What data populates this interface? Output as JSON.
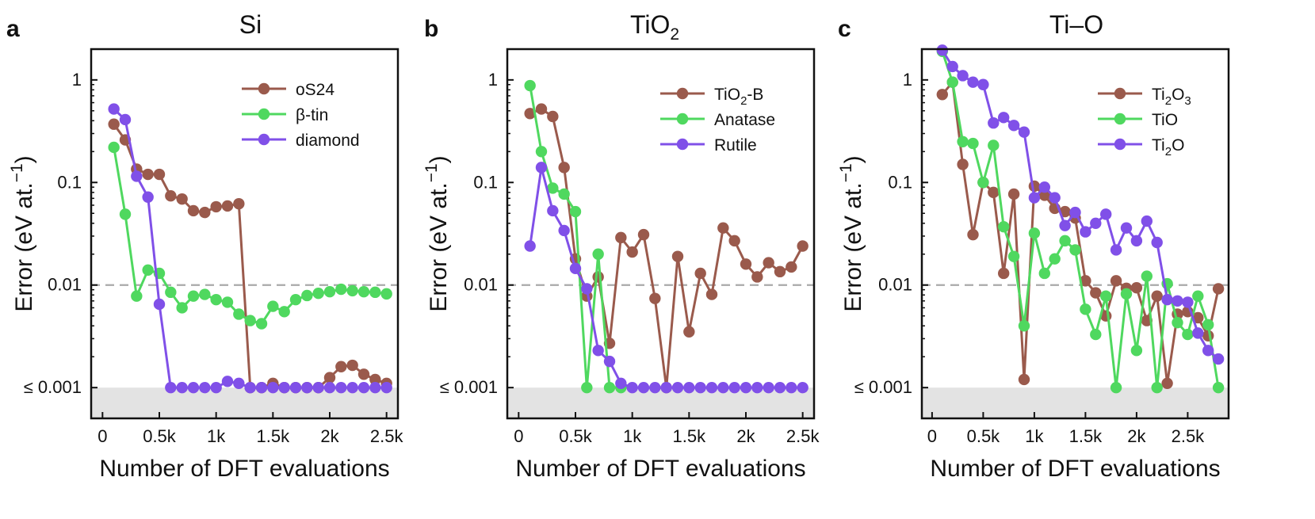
{
  "figure": {
    "xlabel": "Number of DFT evaluations",
    "ylabel": "Error (eV at.",
    "ylabel_sup": "−1",
    "ylabel_close": ")",
    "threshold": 0.01,
    "floor_label": "≤ 0.001"
  },
  "chart_data": [
    {
      "type": "line",
      "panel": "a",
      "title": "Si",
      "xlim": [
        -100,
        2600
      ],
      "ylim_log10": [
        -3.3,
        0.3
      ],
      "xticks": [
        0,
        500,
        1000,
        1500,
        2000,
        2500
      ],
      "xtick_labels": [
        "0",
        "0.5k",
        "1k",
        "1.5k",
        "2k",
        "2.5k"
      ],
      "yticks": [
        1,
        0.1,
        0.01,
        0.001
      ],
      "ytick_labels": [
        "1",
        "0.1",
        "0.01",
        "≤ 0.001"
      ],
      "series": [
        {
          "name": "oS24",
          "color": "#9a5a4c",
          "x": [
            100,
            200,
            300,
            400,
            500,
            600,
            700,
            800,
            900,
            1000,
            1100,
            1200,
            1300,
            1400,
            1500,
            1600,
            1700,
            1800,
            1900,
            2000,
            2100,
            2200,
            2300,
            2400,
            2500
          ],
          "y": [
            0.37,
            0.26,
            0.135,
            0.12,
            0.12,
            0.074,
            0.069,
            0.053,
            0.051,
            0.058,
            0.059,
            0.062,
            0.001,
            0.001,
            0.0011,
            0.001,
            0.001,
            0.001,
            0.001,
            0.00125,
            0.0016,
            0.00165,
            0.00135,
            0.0012,
            0.0011
          ]
        },
        {
          "name": "β-tin",
          "color": "#4fd85f",
          "x": [
            100,
            200,
            300,
            400,
            500,
            600,
            700,
            800,
            900,
            1000,
            1100,
            1200,
            1300,
            1400,
            1500,
            1600,
            1700,
            1800,
            1900,
            2000,
            2100,
            2200,
            2300,
            2400,
            2500
          ],
          "y": [
            0.22,
            0.049,
            0.0078,
            0.014,
            0.013,
            0.0085,
            0.006,
            0.0078,
            0.0081,
            0.0072,
            0.0068,
            0.0052,
            0.0045,
            0.0042,
            0.0062,
            0.0055,
            0.0072,
            0.0079,
            0.0083,
            0.0086,
            0.0091,
            0.0088,
            0.0086,
            0.0085,
            0.0082
          ]
        },
        {
          "name": "diamond",
          "color": "#8050e8",
          "x": [
            100,
            200,
            300,
            400,
            500,
            600,
            700,
            800,
            900,
            1000,
            1100,
            1200,
            1300,
            1400,
            1500,
            1600,
            1700,
            1800,
            1900,
            2000,
            2100,
            2200,
            2300,
            2400,
            2500
          ],
          "y": [
            0.52,
            0.41,
            0.115,
            0.072,
            0.0065,
            0.001,
            0.001,
            0.001,
            0.001,
            0.001,
            0.00115,
            0.0011,
            0.001,
            0.001,
            0.001,
            0.001,
            0.001,
            0.001,
            0.001,
            0.001,
            0.001,
            0.001,
            0.001,
            0.001,
            0.001
          ]
        }
      ]
    },
    {
      "type": "line",
      "panel": "b",
      "title": "TiO",
      "title_sub": "2",
      "xlim": [
        -100,
        2600
      ],
      "ylim_log10": [
        -3.3,
        0.3
      ],
      "xticks": [
        0,
        500,
        1000,
        1500,
        2000,
        2500
      ],
      "xtick_labels": [
        "0",
        "0.5k",
        "1k",
        "1.5k",
        "2k",
        "2.5k"
      ],
      "yticks": [
        1,
        0.1,
        0.01,
        0.001
      ],
      "ytick_labels": [
        "1",
        "0.1",
        "0.01",
        "≤ 0.001"
      ],
      "series": [
        {
          "name": "TiO",
          "name_sub": "2",
          "name_suffix": "-B",
          "color": "#9a5a4c",
          "x": [
            100,
            200,
            300,
            400,
            500,
            600,
            700,
            800,
            900,
            1000,
            1100,
            1200,
            1300,
            1400,
            1500,
            1600,
            1700,
            1800,
            1900,
            2000,
            2100,
            2200,
            2300,
            2400,
            2500
          ],
          "y": [
            0.47,
            0.52,
            0.44,
            0.14,
            0.018,
            0.0078,
            0.012,
            0.0027,
            0.029,
            0.021,
            0.031,
            0.0074,
            0.001,
            0.019,
            0.0035,
            0.013,
            0.0081,
            0.036,
            0.027,
            0.016,
            0.012,
            0.0165,
            0.0135,
            0.015,
            0.024
          ]
        },
        {
          "name": "Anatase",
          "color": "#4fd85f",
          "x": [
            100,
            200,
            300,
            400,
            500,
            600,
            700,
            800,
            900
          ],
          "y": [
            0.88,
            0.2,
            0.088,
            0.077,
            0.052,
            0.001,
            0.02,
            0.001,
            0.001
          ]
        },
        {
          "name": "Rutile",
          "color": "#8050e8",
          "x": [
            100,
            200,
            300,
            400,
            500,
            600,
            700,
            800,
            900,
            1000,
            1100,
            1200,
            1300,
            1400,
            1500,
            1600,
            1700,
            1800,
            1900,
            2000,
            2100,
            2200,
            2300,
            2400,
            2500
          ],
          "y": [
            0.024,
            0.14,
            0.053,
            0.034,
            0.0145,
            0.0092,
            0.0023,
            0.0018,
            0.0011,
            0.001,
            0.001,
            0.001,
            0.001,
            0.001,
            0.001,
            0.001,
            0.001,
            0.001,
            0.001,
            0.001,
            0.001,
            0.001,
            0.001,
            0.001,
            0.001
          ]
        }
      ]
    },
    {
      "type": "line",
      "panel": "c",
      "title": "Ti–O",
      "xlim": [
        -100,
        2900
      ],
      "ylim_log10": [
        -3.3,
        0.3
      ],
      "xticks": [
        0,
        500,
        1000,
        1500,
        2000,
        2500
      ],
      "xtick_labels": [
        "0",
        "0.5k",
        "1k",
        "1.5k",
        "2k",
        "2.5k"
      ],
      "yticks": [
        1,
        0.1,
        0.01,
        0.001
      ],
      "ytick_labels": [
        "1",
        "0.1",
        "0.01",
        "≤ 0.001"
      ],
      "series": [
        {
          "name": "Ti",
          "name_sub": "2",
          "name_mid": "O",
          "name_sub2": "3",
          "color": "#9a5a4c",
          "x": [
            100,
            200,
            300,
            400,
            500,
            600,
            700,
            800,
            900,
            1000,
            1100,
            1200,
            1300,
            1400,
            1500,
            1600,
            1700,
            1800,
            1900,
            2000,
            2100,
            2200,
            2300,
            2400,
            2500,
            2600,
            2700,
            2800
          ],
          "y": [
            0.72,
            0.95,
            0.15,
            0.031,
            0.1,
            0.08,
            0.013,
            0.077,
            0.0012,
            0.092,
            0.075,
            0.056,
            0.052,
            0.045,
            0.011,
            0.0084,
            0.005,
            0.011,
            0.0093,
            0.0094,
            0.0045,
            0.0078,
            0.0011,
            0.0052,
            0.0055,
            0.0048,
            0.0032,
            0.0092
          ]
        },
        {
          "name": "TiO",
          "color": "#4fd85f",
          "x": [
            100,
            200,
            300,
            400,
            500,
            600,
            700,
            800,
            900,
            1000,
            1100,
            1200,
            1300,
            1400,
            1500,
            1600,
            1700,
            1800,
            1900,
            2000,
            2100,
            2200,
            2300,
            2400,
            2500,
            2600,
            2700,
            2800
          ],
          "y": [
            1.9,
            0.95,
            0.25,
            0.24,
            0.1,
            0.23,
            0.037,
            0.019,
            0.004,
            0.032,
            0.013,
            0.018,
            0.027,
            0.022,
            0.0058,
            0.0033,
            0.0078,
            0.001,
            0.0082,
            0.0023,
            0.0122,
            0.001,
            0.0103,
            0.0043,
            0.0033,
            0.0078,
            0.0041,
            0.001
          ]
        },
        {
          "name": "Ti",
          "name_sub": "2",
          "name_mid": "O",
          "color": "#8050e8",
          "x": [
            100,
            200,
            300,
            400,
            500,
            600,
            700,
            800,
            900,
            1000,
            1100,
            1200,
            1300,
            1400,
            1500,
            1600,
            1700,
            1800,
            1900,
            2000,
            2100,
            2200,
            2300,
            2400,
            2500,
            2600,
            2700,
            2800
          ],
          "y": [
            1.95,
            1.35,
            1.1,
            0.95,
            0.9,
            0.38,
            0.43,
            0.36,
            0.31,
            0.071,
            0.09,
            0.071,
            0.038,
            0.051,
            0.033,
            0.04,
            0.049,
            0.022,
            0.036,
            0.027,
            0.042,
            0.026,
            0.0072,
            0.007,
            0.0068,
            0.0034,
            0.0023,
            0.0019
          ]
        }
      ]
    }
  ]
}
